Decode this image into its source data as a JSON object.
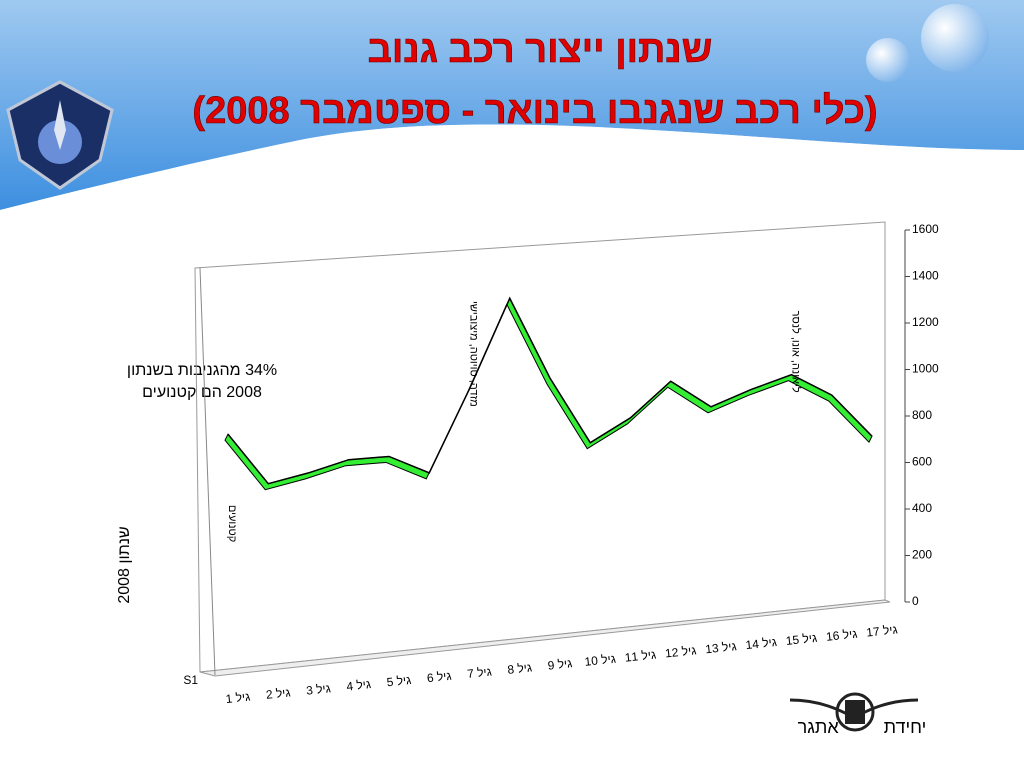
{
  "header": {
    "title_line1": "שנתון ייצור רכב גנוב",
    "title_line2": "(כלי רכב שנגנבו בינואר - ספטמבר 2008)"
  },
  "annotation": "34% מהגניבות בשנתון\n2008 הם קטנועים",
  "side_label": "שנתון 2008",
  "chart_data": {
    "type": "line",
    "categories": [
      "גיל 1",
      "גיל 2",
      "גיל 3",
      "גיל 4",
      "גיל 5",
      "גיל 6",
      "גיל 7",
      "גיל 8",
      "גיל 9",
      "גיל 10",
      "גיל 11",
      "גיל 12",
      "גיל 13",
      "גיל 14",
      "גיל 15",
      "גיל 16",
      "גיל 17"
    ],
    "series": [
      {
        "name": "S1",
        "color": "#33ee33",
        "values": [
          940,
          730,
          760,
          800,
          800,
          720,
          1050,
          1410,
          1070,
          790,
          880,
          1020,
          900,
          960,
          1010,
          910,
          720
        ]
      }
    ],
    "ylim": [
      0,
      1600
    ],
    "yticks": [
      0,
      200,
      400,
      600,
      800,
      1000,
      1200,
      1400,
      1600
    ],
    "point_labels": [
      {
        "index": 0,
        "text": "קטנועים"
      },
      {
        "index": 6,
        "text": "מזדה, טויוטה, מיצובישי"
      },
      {
        "index": 14,
        "text": "ליאונה, אונו, לנסר"
      }
    ]
  },
  "footer": "יחידת אתגר"
}
